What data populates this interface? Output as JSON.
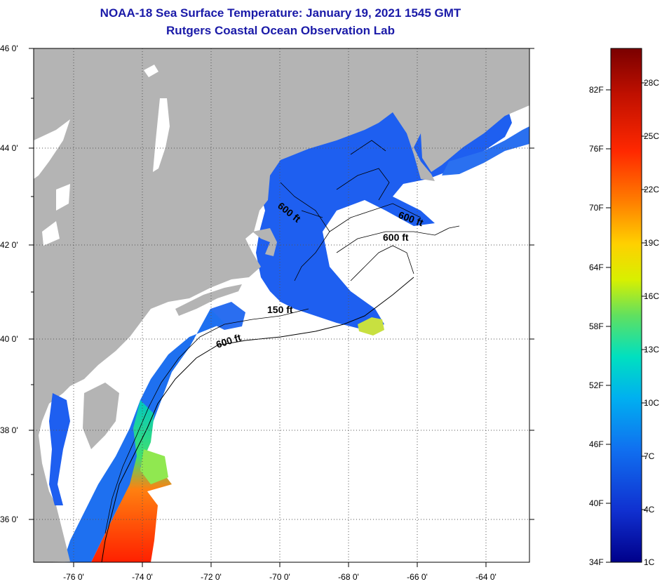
{
  "header": {
    "title": "NOAA-18 Sea Surface Temperature:  January 19, 2021 1545 GMT",
    "subtitle": "Rutgers Coastal Ocean Observation Lab"
  },
  "map": {
    "lat_labels": [
      "46 0'",
      "44 0'",
      "42 0'",
      "40 0'",
      "38 0'",
      "36 0'"
    ],
    "lon_labels": [
      "-76 0'",
      "-74 0'",
      "-72 0'",
      "-70 0'",
      "-68 0'",
      "-66 0'",
      "-64 0'"
    ],
    "isobath_labels": {
      "gom_600a": "600 ft",
      "gom_600b": "600 ft",
      "georges_600": "600 ft",
      "shelf_150": "150 ft",
      "shelf_600": "600 ft"
    }
  },
  "colorbar": {
    "fahrenheit": [
      "82F",
      "76F",
      "70F",
      "64F",
      "58F",
      "52F",
      "46F",
      "40F",
      "34F"
    ],
    "celsius": [
      "28C",
      "25C",
      "22C",
      "19C",
      "16C",
      "13C",
      "10C",
      "7C",
      "4C",
      "1C"
    ],
    "gradient_stops": [
      "#7a0000",
      "#c01000",
      "#ff2800",
      "#ff8000",
      "#ffd000",
      "#d8f000",
      "#60e060",
      "#00e0c0",
      "#00b0f0",
      "#1070f0",
      "#1030d0",
      "#00008a"
    ]
  },
  "colors": {
    "land": "#b4b4b4",
    "ocean_cloud": "#ffffff",
    "title": "#1a1aa8"
  }
}
